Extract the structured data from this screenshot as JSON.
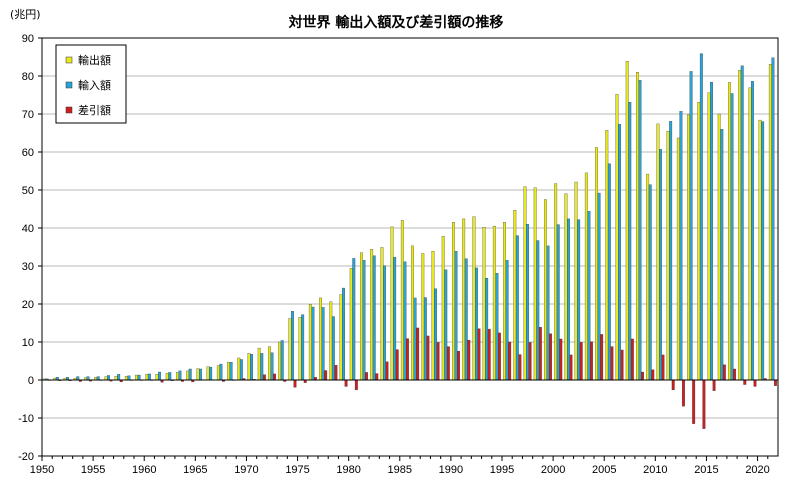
{
  "chart_data": {
    "type": "bar",
    "title": "対世界 輸出入額及び差引額の推移",
    "ylabel": "(兆円)",
    "xlabel": "",
    "ylim": [
      -20,
      90
    ],
    "yticks": [
      -20,
      -10,
      0,
      10,
      20,
      30,
      40,
      50,
      60,
      70,
      80,
      90
    ],
    "xticks": [
      1950,
      1955,
      1960,
      1965,
      1970,
      1975,
      1980,
      1985,
      1990,
      1995,
      2000,
      2005,
      2010,
      2015,
      2020
    ],
    "grid": "horizontal",
    "legend_position": "top-left",
    "categories": [
      1950,
      1951,
      1952,
      1953,
      1954,
      1955,
      1956,
      1957,
      1958,
      1959,
      1960,
      1961,
      1962,
      1963,
      1964,
      1965,
      1966,
      1967,
      1968,
      1969,
      1970,
      1971,
      1972,
      1973,
      1974,
      1975,
      1976,
      1977,
      1978,
      1979,
      1980,
      1981,
      1982,
      1983,
      1984,
      1985,
      1986,
      1987,
      1988,
      1989,
      1990,
      1991,
      1992,
      1993,
      1994,
      1995,
      1996,
      1997,
      1998,
      1999,
      2000,
      2001,
      2002,
      2003,
      2004,
      2005,
      2006,
      2007,
      2008,
      2009,
      2010,
      2011,
      2012,
      2013,
      2014,
      2015,
      2016,
      2017,
      2018,
      2019,
      2020,
      2021
    ],
    "series": [
      {
        "name": "輸出額",
        "color": "#e8e81a",
        "values": [
          0.3,
          0.5,
          0.5,
          0.5,
          0.6,
          0.7,
          0.9,
          1.0,
          1.0,
          1.3,
          1.5,
          1.5,
          1.8,
          2.0,
          2.4,
          3.0,
          3.5,
          3.8,
          4.7,
          5.8,
          7.0,
          8.4,
          8.8,
          10.0,
          16.2,
          16.5,
          19.9,
          21.6,
          20.6,
          22.5,
          29.4,
          33.5,
          34.4,
          34.9,
          40.3,
          42.0,
          35.3,
          33.3,
          33.9,
          37.8,
          41.5,
          42.4,
          43.0,
          40.2,
          40.5,
          41.5,
          44.7,
          50.9,
          50.6,
          47.5,
          51.7,
          49.0,
          52.1,
          54.5,
          61.2,
          65.7,
          75.2,
          83.9,
          81.0,
          54.2,
          67.4,
          65.5,
          63.7,
          69.8,
          73.1,
          75.6,
          70.0,
          78.3,
          81.5,
          76.9,
          68.4,
          83.1
        ]
      },
      {
        "name": "輸入額",
        "color": "#29a3d6",
        "values": [
          0.3,
          0.7,
          0.7,
          0.9,
          0.9,
          0.9,
          1.2,
          1.5,
          1.1,
          1.3,
          1.6,
          2.1,
          2.0,
          2.4,
          2.9,
          2.9,
          3.4,
          4.2,
          4.7,
          5.4,
          6.8,
          7.0,
          7.2,
          10.4,
          18.1,
          17.2,
          19.2,
          19.1,
          16.7,
          24.2,
          32.0,
          31.5,
          32.7,
          30.1,
          32.3,
          31.1,
          21.6,
          21.7,
          24.0,
          29.0,
          33.9,
          31.9,
          29.5,
          26.8,
          28.1,
          31.5,
          38.0,
          41.0,
          36.7,
          35.3,
          40.9,
          42.4,
          42.2,
          44.4,
          49.2,
          56.9,
          67.3,
          73.1,
          78.9,
          51.4,
          60.7,
          68.1,
          70.7,
          81.2,
          85.9,
          78.4,
          66.0,
          75.4,
          82.7,
          78.6,
          68.0,
          84.8
        ]
      },
      {
        "name": "差引額",
        "color": "#cc1f1f",
        "values": [
          -0.1,
          -0.2,
          -0.2,
          -0.4,
          -0.3,
          -0.1,
          -0.3,
          -0.5,
          -0.1,
          0.0,
          -0.1,
          -0.6,
          -0.2,
          -0.4,
          -0.5,
          0.1,
          0.1,
          -0.4,
          0.0,
          0.4,
          0.2,
          1.4,
          1.6,
          -0.4,
          -1.9,
          -0.7,
          0.7,
          2.5,
          3.9,
          -1.7,
          -2.6,
          2.0,
          1.7,
          4.8,
          8.0,
          10.9,
          13.7,
          11.6,
          9.9,
          8.8,
          7.6,
          10.5,
          13.5,
          13.4,
          12.4,
          10.0,
          6.7,
          9.9,
          13.9,
          12.2,
          10.8,
          6.6,
          9.9,
          10.1,
          12.0,
          8.8,
          7.9,
          10.8,
          2.1,
          2.7,
          6.6,
          -2.6,
          -6.9,
          -11.5,
          -12.8,
          -2.8,
          4.0,
          2.9,
          -1.2,
          -1.7,
          0.4,
          -1.5
        ]
      }
    ]
  }
}
